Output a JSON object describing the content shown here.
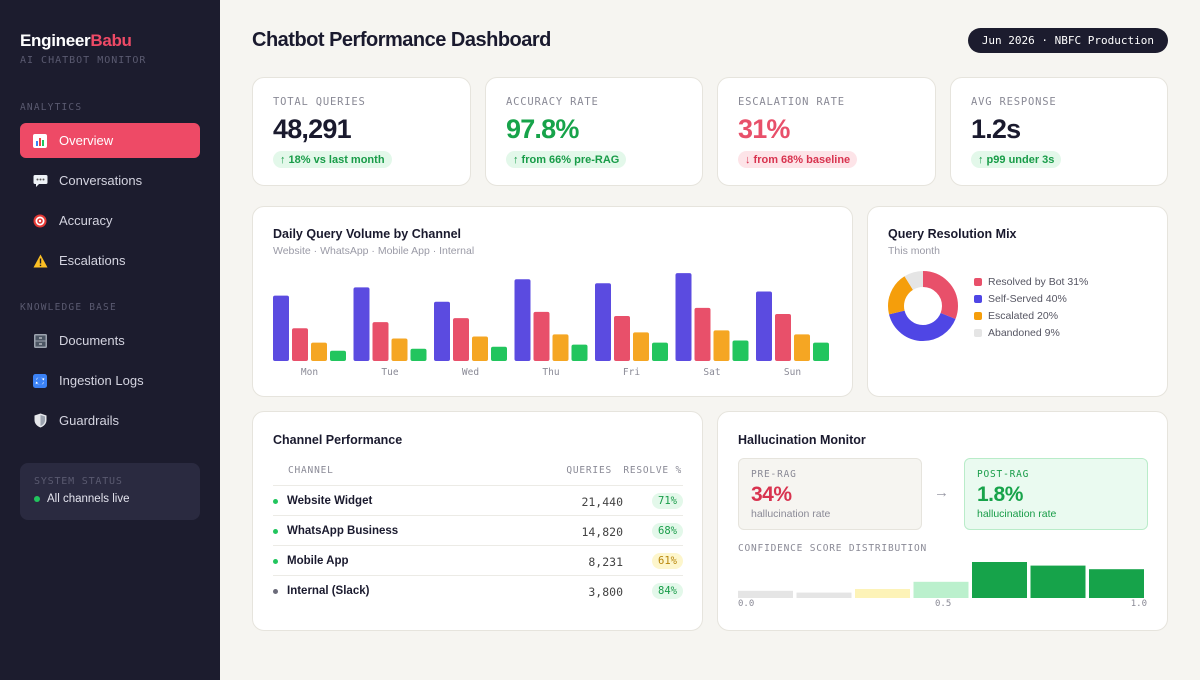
{
  "brand": {
    "name_main": "Engineer",
    "name_accent": "Babu",
    "subtitle": "AI CHATBOT MONITOR"
  },
  "sidebar": {
    "sections": [
      {
        "label": "ANALYTICS",
        "items": [
          {
            "label": "Overview",
            "icon": "bar-chart-icon",
            "active": true
          },
          {
            "label": "Conversations",
            "icon": "speech-bubble-icon",
            "active": false
          },
          {
            "label": "Accuracy",
            "icon": "target-icon",
            "active": false
          },
          {
            "label": "Escalations",
            "icon": "warning-icon",
            "active": false
          }
        ]
      },
      {
        "label": "KNOWLEDGE BASE",
        "items": [
          {
            "label": "Documents",
            "icon": "file-cabinet-icon",
            "active": false
          },
          {
            "label": "Ingestion Logs",
            "icon": "refresh-icon",
            "active": false
          },
          {
            "label": "Guardrails",
            "icon": "shield-icon",
            "active": false
          }
        ]
      }
    ],
    "status": {
      "title": "SYSTEM STATUS",
      "text": "All channels live",
      "color": "#22c55e"
    }
  },
  "header": {
    "title": "Chatbot Performance Dashboard",
    "period": "Jun 2026 · NBFC Production"
  },
  "kpis": [
    {
      "label": "TOTAL QUERIES",
      "value": "48,291",
      "badge": "↑ 18% vs last month",
      "tone": "green"
    },
    {
      "label": "ACCURACY RATE",
      "value": "97.8%",
      "badge": "↑ from 66% pre-RAG",
      "tone": "green"
    },
    {
      "label": "ESCALATION RATE",
      "value": "31%",
      "badge": "↓ from 68% baseline",
      "tone": "red"
    },
    {
      "label": "AVG RESPONSE",
      "value": "1.2s",
      "badge": "↑ p99 under 3s",
      "tone": "green"
    }
  ],
  "volume_chart": {
    "title": "Daily Query Volume by Channel",
    "subtitle": "Website · WhatsApp · Mobile App · Internal"
  },
  "resolution_chart": {
    "title": "Query Resolution Mix",
    "subtitle": "This month",
    "legend_labels": [
      "Resolved by Bot 31%",
      "Self-Served 40%",
      "Escalated 20%",
      "Abandoned 9%"
    ]
  },
  "chart_data": [
    {
      "type": "bar",
      "title": "Daily Query Volume by Channel",
      "categories": [
        "Mon",
        "Tue",
        "Wed",
        "Thu",
        "Fri",
        "Sat",
        "Sun"
      ],
      "series": [
        {
          "name": "Website",
          "color": "#5b4be0",
          "values": [
            64,
            72,
            58,
            80,
            76,
            86,
            68
          ]
        },
        {
          "name": "WhatsApp",
          "color": "#e8506a",
          "values": [
            32,
            38,
            42,
            48,
            44,
            52,
            46
          ]
        },
        {
          "name": "Mobile App",
          "color": "#f5a623",
          "values": [
            18,
            22,
            24,
            26,
            28,
            30,
            26
          ]
        },
        {
          "name": "Internal",
          "color": "#22c55e",
          "values": [
            10,
            12,
            14,
            16,
            18,
            20,
            18
          ]
        }
      ],
      "ylim": [
        0,
        90
      ]
    },
    {
      "type": "pie",
      "title": "Query Resolution Mix",
      "labels": [
        "Resolved by Bot",
        "Self-Served",
        "Escalated",
        "Abandoned"
      ],
      "values": [
        31,
        40,
        20,
        9
      ],
      "colors": [
        "#e8506a",
        "#4f46e5",
        "#f59e0b",
        "#e5e5e5"
      ]
    },
    {
      "type": "bar",
      "title": "CONFIDENCE SCORE DISTRIBUTION",
      "categories": [
        "1",
        "2",
        "3",
        "4",
        "5",
        "6",
        "7"
      ],
      "values": [
        2,
        1.5,
        2.5,
        4.5,
        10,
        9,
        8
      ],
      "colors": [
        "#e5e5e5",
        "#e5e5e5",
        "#fdf3b8",
        "#bbf0cd",
        "#16a34a",
        "#16a34a",
        "#16a34a"
      ],
      "x_ticks": [
        "0.0",
        "0.5",
        "1.0"
      ]
    }
  ],
  "channels": {
    "title": "Channel Performance",
    "headers": {
      "channel": "CHANNEL",
      "queries": "QUERIES",
      "resolve": "RESOLVE %"
    },
    "rows": [
      {
        "name": "Website Widget",
        "queries": "21,440",
        "resolve": "71%",
        "tone": "green",
        "dot": "#22c55e"
      },
      {
        "name": "WhatsApp Business",
        "queries": "14,820",
        "resolve": "68%",
        "tone": "green",
        "dot": "#22c55e"
      },
      {
        "name": "Mobile App",
        "queries": "8,231",
        "resolve": "61%",
        "tone": "yellow",
        "dot": "#22c55e"
      },
      {
        "name": "Internal (Slack)",
        "queries": "3,800",
        "resolve": "84%",
        "tone": "green",
        "dot": "#6b6b7a"
      }
    ]
  },
  "hallucination": {
    "title": "Hallucination Monitor",
    "pre": {
      "label": "PRE-RAG",
      "value": "34%",
      "sub": "hallucination rate"
    },
    "arrow": "→",
    "post": {
      "label": "POST-RAG",
      "value": "1.8%",
      "sub": "hallucination rate"
    },
    "distribution_label": "CONFIDENCE SCORE DISTRIBUTION"
  }
}
